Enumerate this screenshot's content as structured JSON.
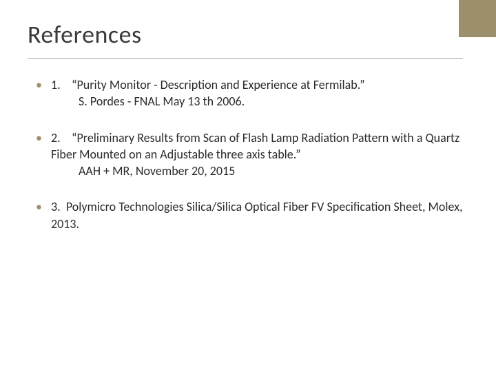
{
  "slide": {
    "title": "References",
    "accent_color": "#9c8f6b",
    "background_color": "#ffffff",
    "text_color": "#2b2b2b",
    "title_color": "#3a3a3a",
    "title_fontsize": 36,
    "body_fontsize": 18,
    "references": [
      {
        "num": "1.",
        "title": "“Purity Monitor - Description and Experience at Fermilab.”",
        "author": "S. Pordes - FNAL May 13 th 2006."
      },
      {
        "num": "2.",
        "title": "“Preliminary Results from Scan of Flash Lamp Radiation Pattern with a Quartz  Fiber Mounted on an Adjustable three axis table.”",
        "author": "AAH + MR, November 20, 2015"
      },
      {
        "num": "3.",
        "title": "Polymicro Technologies Silica/Silica Optical Fiber FV Specification Sheet, Molex, 2013.",
        "author": ""
      }
    ]
  }
}
